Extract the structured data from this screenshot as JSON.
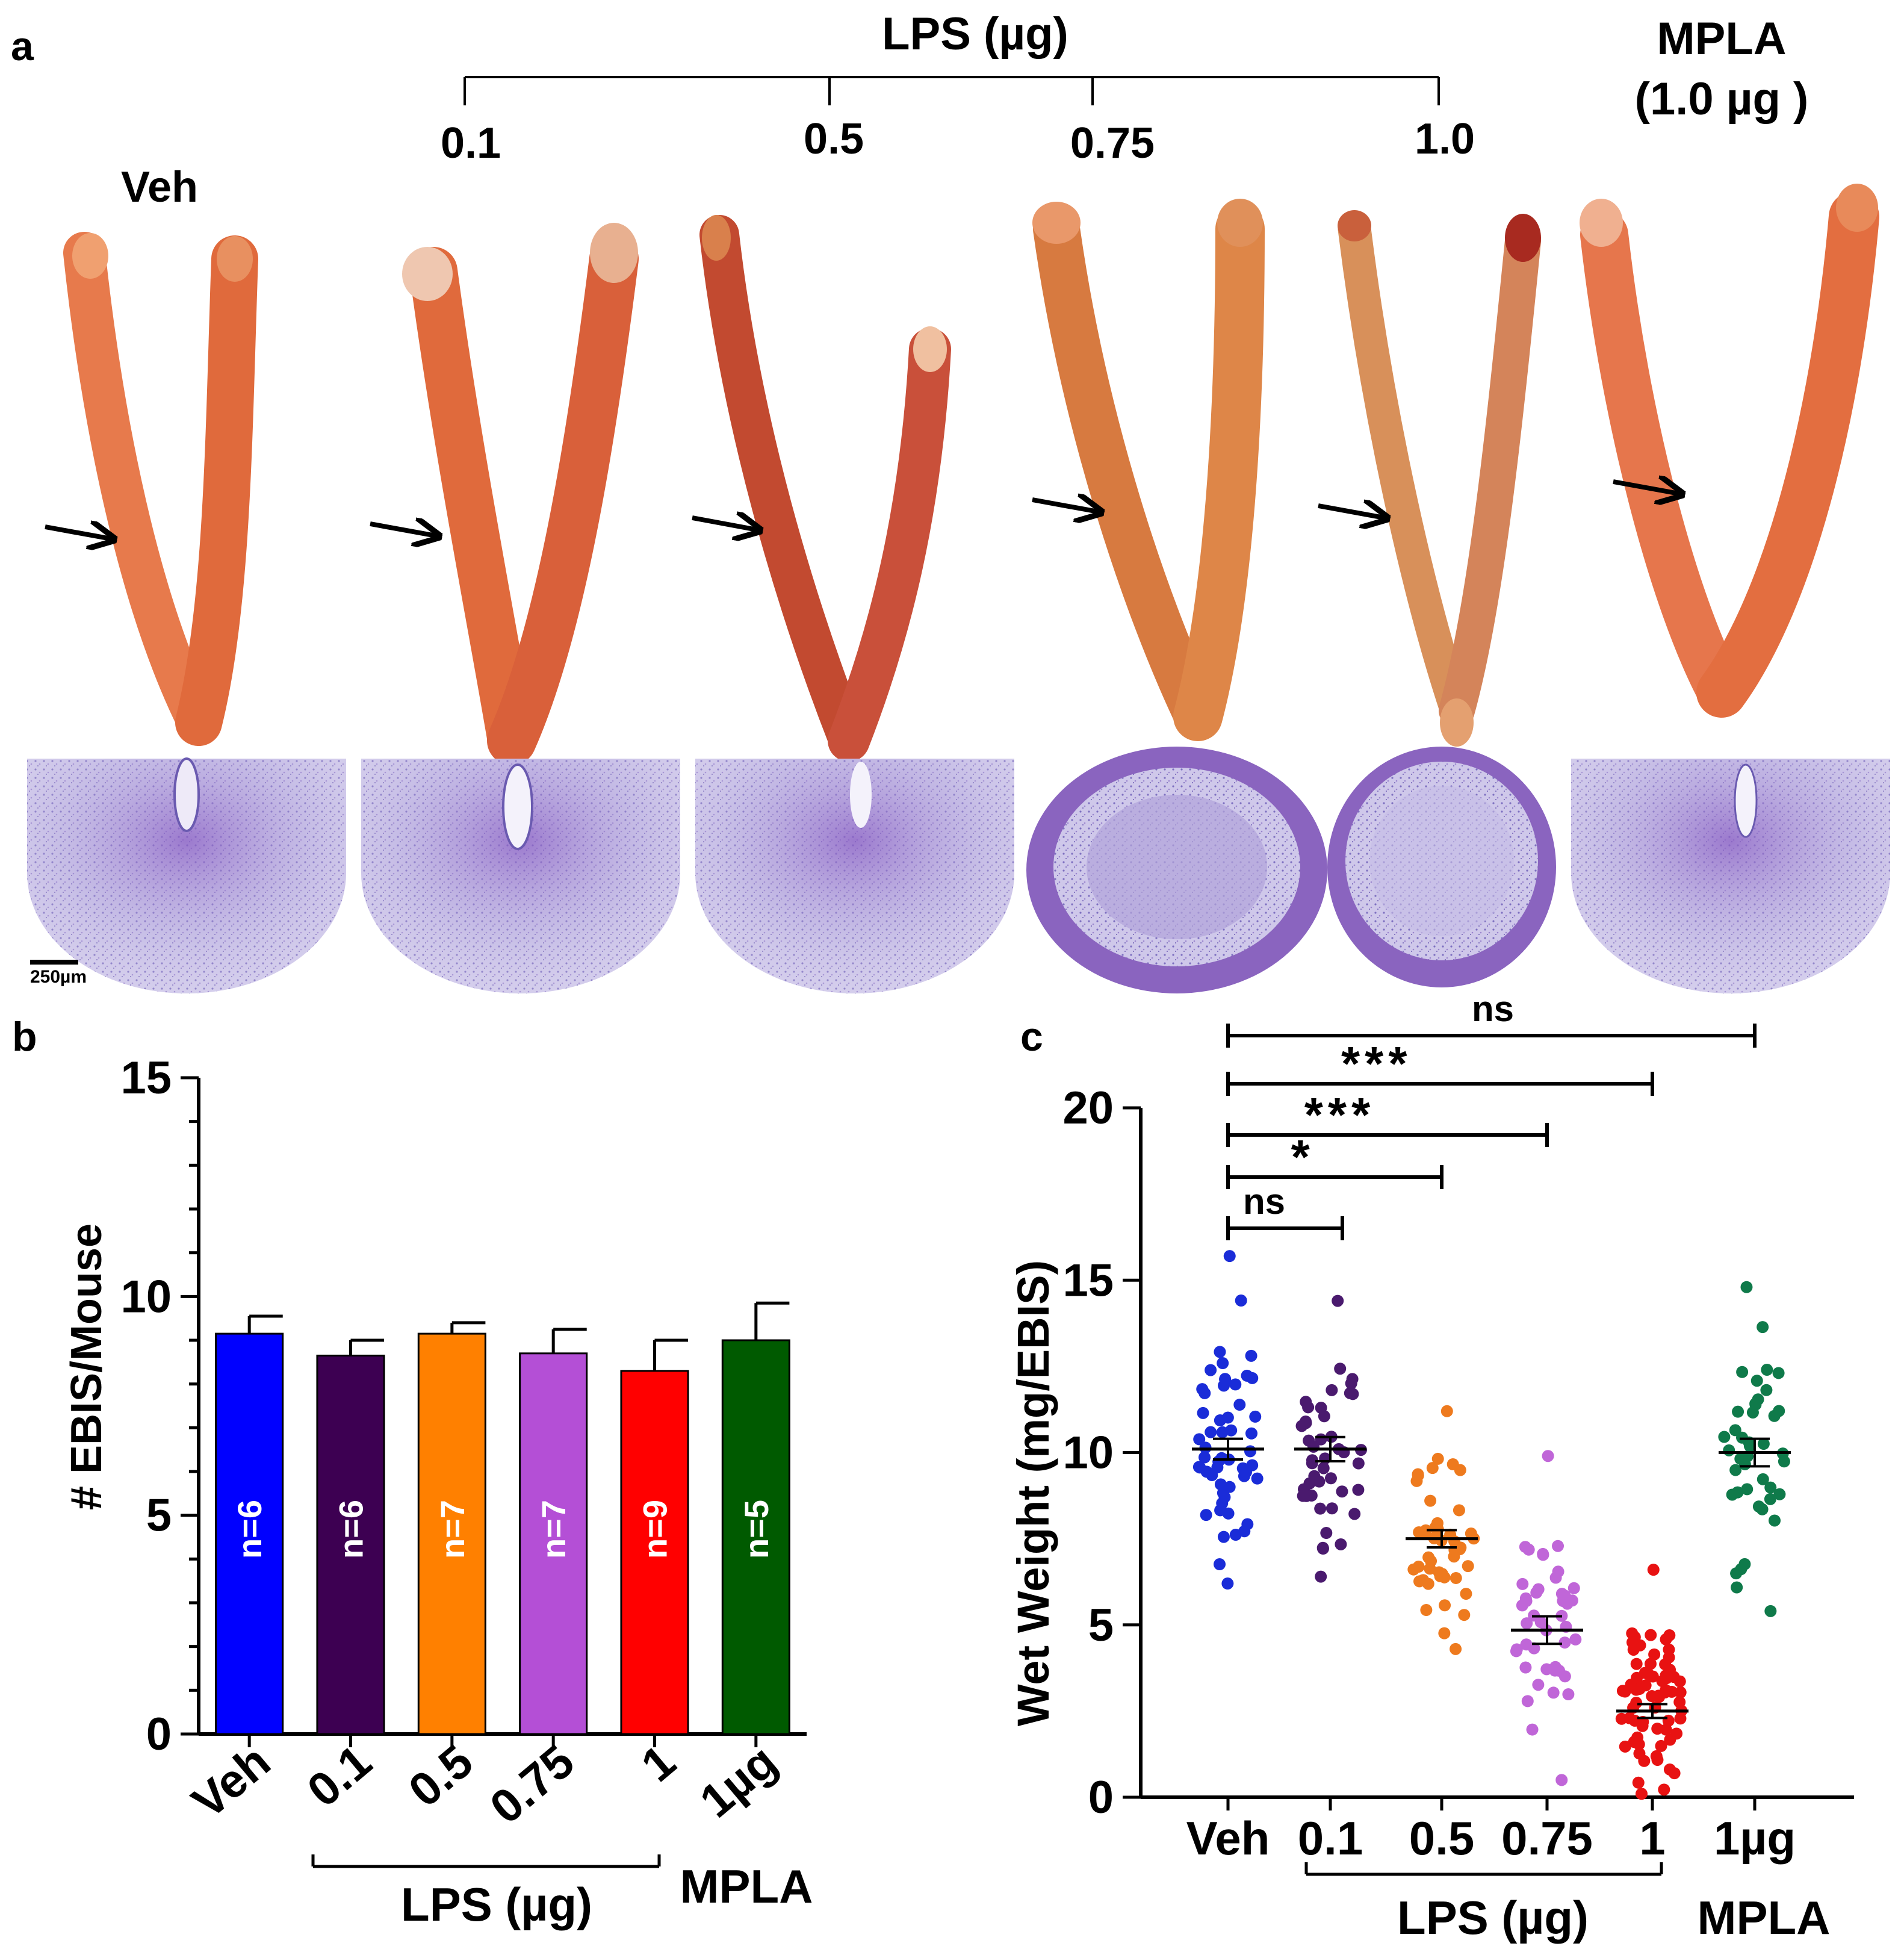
{
  "panel_a": {
    "label": "a",
    "lps_title": "LPS (µg)",
    "mpla_title_line1": "MPLA",
    "mpla_title_line2": "(1.0 µg )",
    "veh_label": "Veh",
    "doses": [
      "0.1",
      "0.5",
      "0.75",
      "1.0"
    ],
    "scale_bar": "250µm",
    "colors": {
      "tissue_orange": "#e06a3c",
      "tissue_dark": "#b8432a",
      "histology_purple": "#9a8ccc"
    }
  },
  "chart_data": [
    {
      "panel": "b",
      "type": "bar",
      "label": "b",
      "ylabel": "# EBIS/Mouse",
      "ylim": [
        0,
        15
      ],
      "yticks": [
        "0",
        "5",
        "10",
        "15"
      ],
      "categories": [
        "Veh",
        "0.1",
        "0.5",
        "0.75",
        "1",
        "1µg"
      ],
      "values": [
        9.15,
        8.65,
        9.15,
        8.7,
        8.3,
        9.0
      ],
      "errors": [
        0.4,
        0.35,
        0.25,
        0.55,
        0.7,
        0.85
      ],
      "n_labels": [
        "n=6",
        "n=6",
        "n=7",
        "n=7",
        "n=9",
        "n=5"
      ],
      "colors": [
        "#0000ff",
        "#3d0052",
        "#ff8000",
        "#b44fd6",
        "#ff0000",
        "#005a00"
      ],
      "group_labels": {
        "lps": "LPS (µg)",
        "mpla": "MPLA"
      }
    },
    {
      "panel": "c",
      "type": "scatter",
      "label": "c",
      "ylabel": "Wet Weight (mg/EBIS)",
      "ylim": [
        0,
        20
      ],
      "yticks": [
        "0",
        "5",
        "10",
        "15",
        "20"
      ],
      "categories": [
        "Veh",
        "0.1",
        "0.5",
        "0.75",
        "1",
        "1µg"
      ],
      "means": [
        10.1,
        10.1,
        7.5,
        4.85,
        2.5,
        10.0
      ],
      "sem": [
        0.3,
        0.35,
        0.25,
        0.4,
        0.2,
        0.4
      ],
      "ranges": [
        [
          6.2,
          15.7
        ],
        [
          6.4,
          14.4
        ],
        [
          4.3,
          11.2
        ],
        [
          0.5,
          9.9
        ],
        [
          0.1,
          6.6
        ],
        [
          5.4,
          14.8
        ]
      ],
      "counts": [
        54,
        44,
        46,
        44,
        68,
        42
      ],
      "colors": [
        "#1a2cd8",
        "#4a1a6e",
        "#ee7a1e",
        "#c066d8",
        "#e81212",
        "#0f7a4a"
      ],
      "group_labels": {
        "lps": "LPS (µg)",
        "mpla": "MPLA"
      },
      "significance": [
        {
          "from": "Veh",
          "to": "0.1",
          "label": "ns"
        },
        {
          "from": "Veh",
          "to": "0.5",
          "label": "*"
        },
        {
          "from": "Veh",
          "to": "0.75",
          "label": "***"
        },
        {
          "from": "Veh",
          "to": "1",
          "label": "***"
        },
        {
          "from": "Veh",
          "to": "1µg",
          "label": "ns"
        }
      ]
    }
  ]
}
